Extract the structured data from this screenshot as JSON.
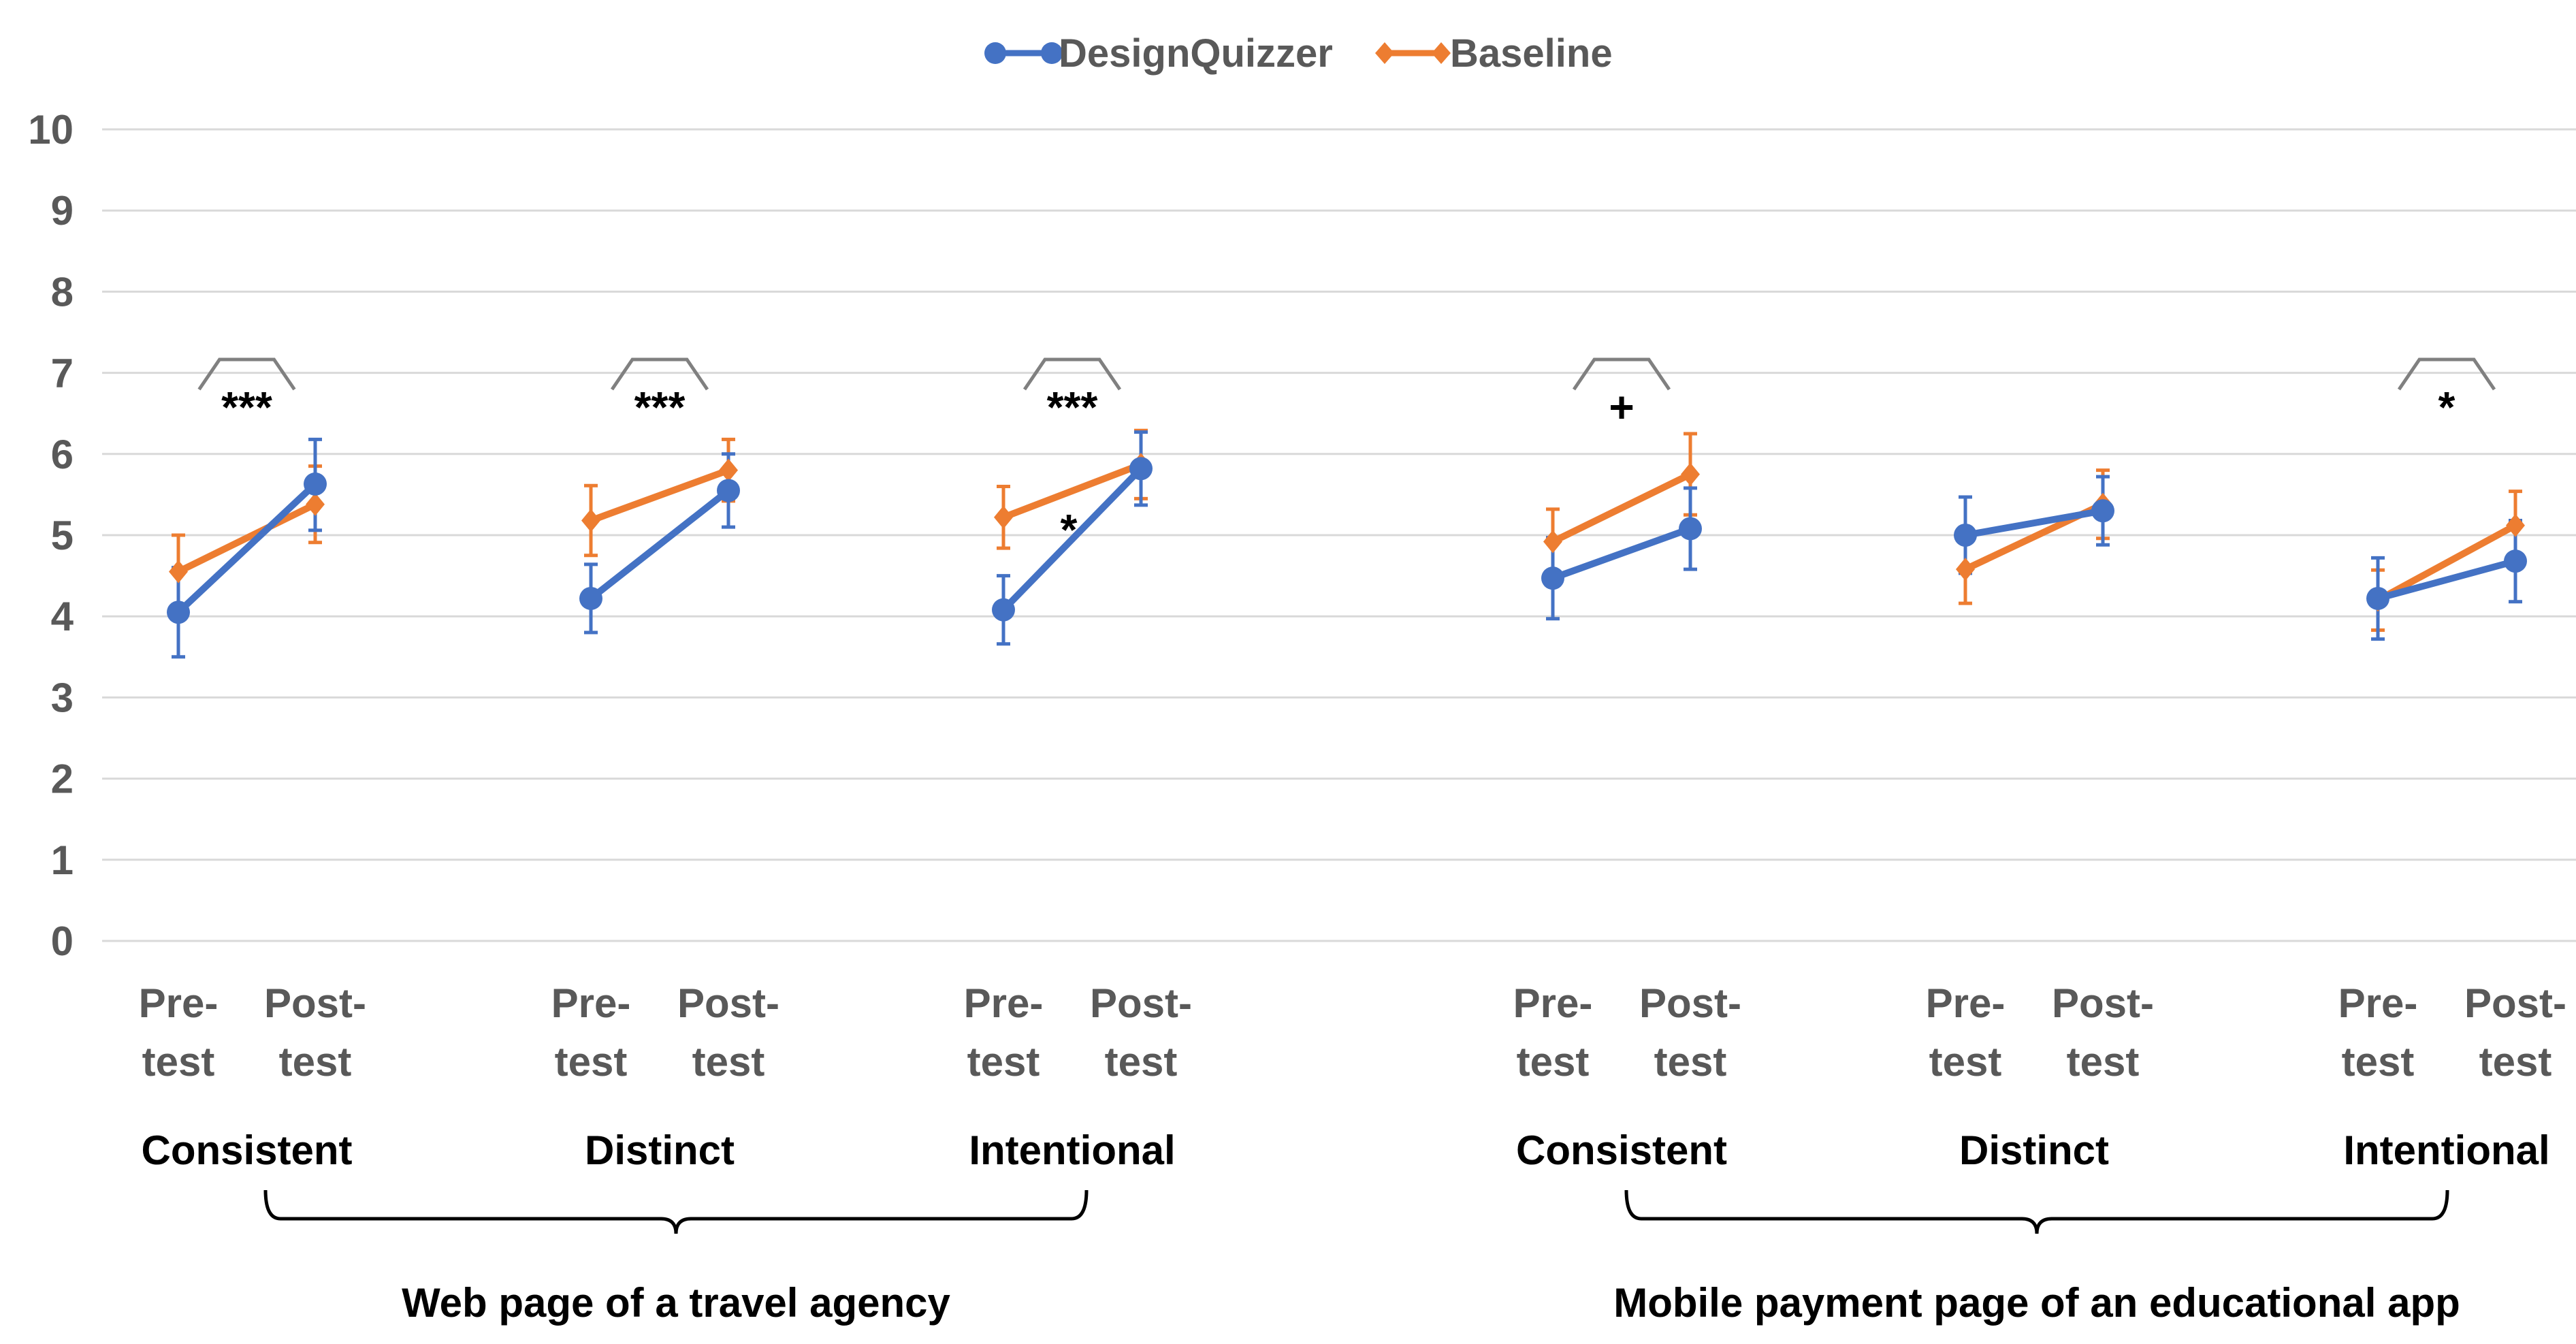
{
  "chart_data": {
    "type": "line",
    "title": "",
    "xlabel": "",
    "ylabel": "",
    "ylim": [
      0,
      10
    ],
    "yticks": [
      "0",
      "1",
      "2",
      "3",
      "4",
      "5",
      "6",
      "7",
      "8",
      "9",
      "10"
    ],
    "legend": {
      "placement": "top-center",
      "entries": [
        {
          "name": "DesignQuizzer",
          "color": "#4472C4",
          "marker": "circle"
        },
        {
          "name": "Baseline",
          "color": "#ED7D31",
          "marker": "diamond"
        }
      ]
    },
    "tick_labels": {
      "pre_line1": "Pre-",
      "post_line1": "Post-",
      "line2": "test"
    },
    "groups": [
      {
        "label": "Web page of a travel agency",
        "criteria": [
          "Consistent",
          "Distinct",
          "Intentional"
        ]
      },
      {
        "label": "Mobile payment page of an educational app",
        "criteria": [
          "Consistent",
          "Distinct",
          "Intentional"
        ]
      }
    ],
    "panels": [
      {
        "group": 0,
        "criterion": "Consistent",
        "series": [
          {
            "name": "DesignQuizzer",
            "values": [
              4.05,
              5.63
            ],
            "err": [
              [
                0.55,
                0.55
              ],
              [
                0.57,
                0.55
              ]
            ]
          },
          {
            "name": "Baseline",
            "values": [
              4.55,
              5.38
            ],
            "err": [
              [
                0.45,
                0.45
              ],
              [
                0.47,
                0.47
              ]
            ]
          }
        ],
        "significance": "***"
      },
      {
        "group": 0,
        "criterion": "Distinct",
        "series": [
          {
            "name": "DesignQuizzer",
            "values": [
              4.22,
              5.55
            ],
            "err": [
              [
                0.42,
                0.42
              ],
              [
                0.45,
                0.45
              ]
            ]
          },
          {
            "name": "Baseline",
            "values": [
              5.18,
              5.8
            ],
            "err": [
              [
                0.43,
                0.43
              ],
              [
                0.38,
                0.38
              ]
            ]
          }
        ],
        "significance": "***"
      },
      {
        "group": 0,
        "criterion": "Intentional",
        "series": [
          {
            "name": "DesignQuizzer",
            "values": [
              4.08,
              5.82
            ],
            "err": [
              [
                0.42,
                0.42
              ],
              [
                0.45,
                0.45
              ]
            ]
          },
          {
            "name": "Baseline",
            "values": [
              5.22,
              5.87
            ],
            "err": [
              [
                0.38,
                0.38
              ],
              [
                0.42,
                0.42
              ]
            ]
          }
        ],
        "significance": "***",
        "extra_mark": "*"
      },
      {
        "group": 1,
        "criterion": "Consistent",
        "series": [
          {
            "name": "DesignQuizzer",
            "values": [
              4.47,
              5.08
            ],
            "err": [
              [
                0.5,
                0.5
              ],
              [
                0.5,
                0.5
              ]
            ]
          },
          {
            "name": "Baseline",
            "values": [
              4.92,
              5.75
            ],
            "err": [
              [
                0.4,
                0.4
              ],
              [
                0.5,
                0.5
              ]
            ]
          }
        ],
        "significance": "+"
      },
      {
        "group": 1,
        "criterion": "Distinct",
        "series": [
          {
            "name": "DesignQuizzer",
            "values": [
              5.0,
              5.3
            ],
            "err": [
              [
                0.47,
                0.47
              ],
              [
                0.42,
                0.42
              ]
            ]
          },
          {
            "name": "Baseline",
            "values": [
              4.58,
              5.38
            ],
            "err": [
              [
                0.42,
                0.42
              ],
              [
                0.42,
                0.42
              ]
            ]
          }
        ],
        "significance": ""
      },
      {
        "group": 1,
        "criterion": "Intentional",
        "series": [
          {
            "name": "DesignQuizzer",
            "values": [
              4.22,
              4.68
            ],
            "err": [
              [
                0.5,
                0.5
              ],
              [
                0.5,
                0.5
              ]
            ]
          },
          {
            "name": "Baseline",
            "values": [
              4.2,
              5.12
            ],
            "err": [
              [
                0.37,
                0.37
              ],
              [
                0.42,
                0.42
              ]
            ]
          }
        ],
        "significance": "*"
      }
    ]
  }
}
